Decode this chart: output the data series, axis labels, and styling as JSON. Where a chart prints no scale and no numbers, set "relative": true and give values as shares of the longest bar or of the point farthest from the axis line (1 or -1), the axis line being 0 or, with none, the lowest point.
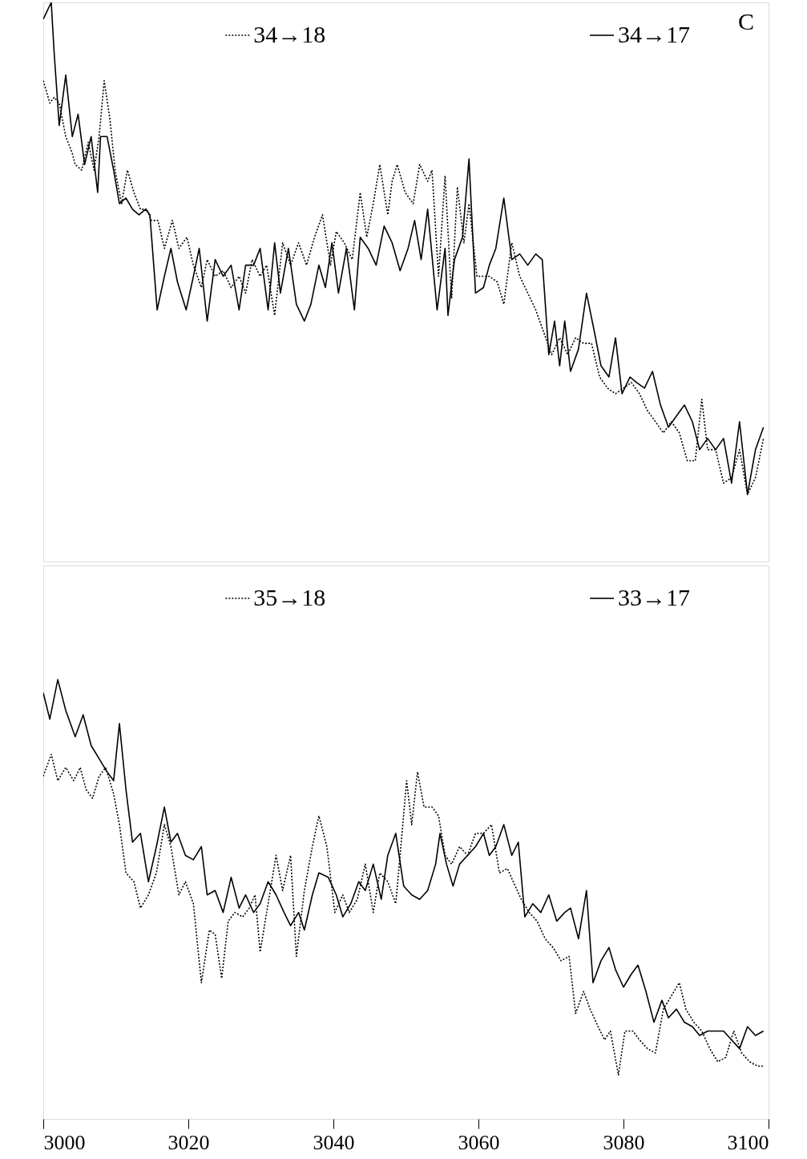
{
  "chart_data": [
    {
      "type": "line",
      "relative": true,
      "xlim": [
        3000,
        3100
      ],
      "xticks": [
        3000,
        3020,
        3040,
        3060,
        3080,
        3100
      ],
      "tick_labels": false,
      "grid": false,
      "legend": "top",
      "annotations": [
        "C"
      ],
      "series": [
        {
          "name": "34→18",
          "color": "#000000",
          "line_style": "dotted",
          "x": [
            3000,
            3000.9,
            3001.5,
            3002.2,
            3003.1,
            3004.0,
            3004.4,
            3005.3,
            3006.2,
            3007.0,
            3007.7,
            3008.4,
            3009.2,
            3009.9,
            3010.8,
            3011.6,
            3012.5,
            3013.4,
            3014.3,
            3014.9,
            3015.8,
            3016.7,
            3017.8,
            3018.7,
            3019.8,
            3020.7,
            3021.8,
            3022.6,
            3023.7,
            3024.8,
            3025.9,
            3027.0,
            3027.9,
            3028.8,
            3029.9,
            3030.8,
            3031.9,
            3033.0,
            3034.1,
            3035.2,
            3036.3,
            3037.4,
            3038.5,
            3039.6,
            3040.4,
            3041.5,
            3042.6,
            3043.7,
            3044.6,
            3045.5,
            3046.4,
            3047.5,
            3048.1,
            3048.8,
            3049.9,
            3051.0,
            3051.9,
            3053.0,
            3053.6,
            3054.5,
            3055.4,
            3056.3,
            3057.1,
            3058.0,
            3058.7,
            3059.8,
            3060.7,
            3061.5,
            3062.6,
            3063.5,
            3064.6,
            3065.7,
            3066.8,
            3067.9,
            3069.0,
            3070.1,
            3071.2,
            3072.3,
            3073.4,
            3074.5,
            3075.6,
            3076.7,
            3077.8,
            3078.9,
            3080.0,
            3081.1,
            3082.2,
            3083.3,
            3084.4,
            3085.5,
            3086.6,
            3087.7,
            3088.8,
            3089.9,
            3090.8,
            3091.6,
            3092.7,
            3093.8,
            3094.9,
            3096.0,
            3097.1,
            3098.2,
            3099.3
          ],
          "values": [
            0.86,
            0.82,
            0.83,
            0.82,
            0.76,
            0.73,
            0.71,
            0.7,
            0.75,
            0.7,
            0.76,
            0.86,
            0.79,
            0.7,
            0.64,
            0.7,
            0.66,
            0.63,
            0.63,
            0.61,
            0.61,
            0.56,
            0.61,
            0.56,
            0.58,
            0.53,
            0.49,
            0.54,
            0.51,
            0.52,
            0.49,
            0.51,
            0.48,
            0.54,
            0.51,
            0.53,
            0.44,
            0.57,
            0.53,
            0.57,
            0.53,
            0.58,
            0.62,
            0.53,
            0.59,
            0.57,
            0.54,
            0.66,
            0.58,
            0.64,
            0.71,
            0.62,
            0.68,
            0.71,
            0.66,
            0.64,
            0.71,
            0.68,
            0.7,
            0.51,
            0.69,
            0.47,
            0.67,
            0.57,
            0.64,
            0.51,
            0.51,
            0.51,
            0.5,
            0.46,
            0.57,
            0.51,
            0.48,
            0.45,
            0.41,
            0.37,
            0.4,
            0.37,
            0.4,
            0.39,
            0.39,
            0.33,
            0.31,
            0.3,
            0.31,
            0.32,
            0.3,
            0.27,
            0.25,
            0.23,
            0.25,
            0.23,
            0.18,
            0.18,
            0.29,
            0.2,
            0.2,
            0.14,
            0.15,
            0.2,
            0.12,
            0.15,
            0.22
          ]
        },
        {
          "name": "34→17",
          "color": "#000000",
          "line_style": "solid",
          "x": [
            3000,
            3001.1,
            3001.5,
            3002.2,
            3003.1,
            3004.0,
            3004.8,
            3005.7,
            3006.6,
            3007.5,
            3007.9,
            3008.8,
            3009.7,
            3010.5,
            3011.4,
            3012.3,
            3013.2,
            3014.1,
            3014.7,
            3015.7,
            3016.7,
            3017.6,
            3018.5,
            3019.7,
            3020.7,
            3021.5,
            3022.6,
            3023.7,
            3024.8,
            3025.9,
            3027.0,
            3027.9,
            3029.0,
            3029.9,
            3031.0,
            3031.9,
            3032.7,
            3033.8,
            3034.9,
            3036.0,
            3036.9,
            3038.0,
            3038.9,
            3039.8,
            3040.7,
            3041.8,
            3042.9,
            3043.7,
            3044.8,
            3045.9,
            3047.0,
            3048.1,
            3049.2,
            3050.3,
            3051.2,
            3052.1,
            3053.0,
            3054.3,
            3055.4,
            3055.8,
            3056.7,
            3057.8,
            3058.7,
            3059.6,
            3060.7,
            3061.5,
            3062.4,
            3063.5,
            3064.6,
            3065.7,
            3066.8,
            3067.9,
            3068.8,
            3069.7,
            3070.5,
            3071.2,
            3071.9,
            3072.7,
            3073.8,
            3074.9,
            3076.0,
            3076.9,
            3078.0,
            3078.9,
            3079.8,
            3080.9,
            3081.8,
            3082.9,
            3084.0,
            3085.1,
            3086.2,
            3087.3,
            3088.4,
            3089.5,
            3090.5,
            3091.6,
            3092.7,
            3093.8,
            3094.9,
            3096.0,
            3097.1,
            3098.2,
            3099.3
          ],
          "values": [
            0.97,
            1.0,
            0.91,
            0.78,
            0.87,
            0.76,
            0.8,
            0.71,
            0.76,
            0.66,
            0.76,
            0.76,
            0.7,
            0.64,
            0.65,
            0.63,
            0.62,
            0.63,
            0.62,
            0.45,
            0.51,
            0.56,
            0.5,
            0.45,
            0.51,
            0.56,
            0.43,
            0.54,
            0.51,
            0.53,
            0.45,
            0.53,
            0.53,
            0.56,
            0.45,
            0.57,
            0.48,
            0.56,
            0.46,
            0.43,
            0.46,
            0.53,
            0.49,
            0.57,
            0.48,
            0.56,
            0.45,
            0.58,
            0.56,
            0.53,
            0.6,
            0.57,
            0.52,
            0.56,
            0.61,
            0.54,
            0.63,
            0.45,
            0.56,
            0.44,
            0.54,
            0.58,
            0.72,
            0.48,
            0.49,
            0.53,
            0.56,
            0.65,
            0.54,
            0.55,
            0.53,
            0.55,
            0.54,
            0.37,
            0.43,
            0.35,
            0.43,
            0.34,
            0.38,
            0.48,
            0.41,
            0.35,
            0.33,
            0.4,
            0.3,
            0.33,
            0.32,
            0.31,
            0.34,
            0.28,
            0.24,
            0.26,
            0.28,
            0.25,
            0.2,
            0.22,
            0.2,
            0.22,
            0.14,
            0.25,
            0.12,
            0.2,
            0.24
          ]
        }
      ]
    },
    {
      "type": "line",
      "relative": true,
      "xlim": [
        3000,
        3100
      ],
      "xticks": [
        3000,
        3020,
        3040,
        3060,
        3080,
        3100
      ],
      "grid": false,
      "legend": "top",
      "series": [
        {
          "name": "35→18",
          "color": "#000000",
          "line_style": "dotted",
          "x": [
            3000,
            3001.1,
            3002.0,
            3003.1,
            3004.2,
            3005.1,
            3005.9,
            3006.8,
            3007.7,
            3008.6,
            3009.7,
            3010.5,
            3011.4,
            3012.5,
            3013.4,
            3014.5,
            3015.6,
            3016.7,
            3017.6,
            3018.7,
            3019.6,
            3020.7,
            3021.8,
            3022.9,
            3023.7,
            3024.6,
            3025.5,
            3026.4,
            3027.5,
            3028.4,
            3029.2,
            3029.9,
            3031.0,
            3032.1,
            3033.0,
            3034.1,
            3034.9,
            3036.0,
            3037.1,
            3038.0,
            3039.1,
            3040.2,
            3041.3,
            3042.2,
            3043.3,
            3044.4,
            3045.5,
            3046.4,
            3047.5,
            3048.6,
            3049.2,
            3050.1,
            3050.8,
            3051.6,
            3052.5,
            3053.6,
            3054.5,
            3055.4,
            3056.3,
            3057.4,
            3058.5,
            3059.6,
            3060.7,
            3061.8,
            3062.9,
            3064.0,
            3064.8,
            3065.9,
            3067.0,
            3068.1,
            3069.2,
            3070.3,
            3071.4,
            3072.5,
            3073.4,
            3074.5,
            3075.4,
            3076.5,
            3077.4,
            3078.2,
            3079.3,
            3080.2,
            3081.3,
            3082.2,
            3083.3,
            3084.4,
            3085.5,
            3086.6,
            3087.7,
            3088.6,
            3089.7,
            3090.8,
            3091.9,
            3093.0,
            3094.1,
            3095.2,
            3096.3,
            3097.4,
            3098.5,
            3099.3
          ],
          "values": [
            0.78,
            0.83,
            0.77,
            0.8,
            0.77,
            0.8,
            0.75,
            0.73,
            0.78,
            0.8,
            0.74,
            0.67,
            0.56,
            0.54,
            0.48,
            0.51,
            0.56,
            0.67,
            0.62,
            0.51,
            0.54,
            0.49,
            0.31,
            0.43,
            0.42,
            0.32,
            0.45,
            0.47,
            0.46,
            0.48,
            0.51,
            0.38,
            0.49,
            0.6,
            0.52,
            0.6,
            0.37,
            0.52,
            0.62,
            0.69,
            0.62,
            0.47,
            0.51,
            0.47,
            0.5,
            0.58,
            0.47,
            0.56,
            0.54,
            0.49,
            0.6,
            0.77,
            0.67,
            0.79,
            0.71,
            0.71,
            0.69,
            0.6,
            0.58,
            0.62,
            0.6,
            0.65,
            0.65,
            0.67,
            0.56,
            0.57,
            0.54,
            0.5,
            0.47,
            0.45,
            0.41,
            0.39,
            0.36,
            0.37,
            0.24,
            0.29,
            0.25,
            0.21,
            0.18,
            0.2,
            0.1,
            0.2,
            0.2,
            0.18,
            0.16,
            0.15,
            0.25,
            0.28,
            0.31,
            0.25,
            0.22,
            0.2,
            0.16,
            0.13,
            0.14,
            0.2,
            0.15,
            0.13,
            0.12,
            0.12
          ]
        },
        {
          "name": "33→17",
          "color": "#000000",
          "line_style": "solid",
          "x": [
            3000,
            3000.9,
            3002.0,
            3003.1,
            3004.4,
            3005.5,
            3006.6,
            3007.7,
            3008.8,
            3009.7,
            3010.5,
            3011.4,
            3012.3,
            3013.4,
            3014.5,
            3015.6,
            3016.7,
            3017.6,
            3018.5,
            3019.6,
            3020.7,
            3021.8,
            3022.6,
            3023.7,
            3024.8,
            3025.9,
            3027.0,
            3027.9,
            3029.0,
            3029.9,
            3031.0,
            3032.1,
            3033.2,
            3034.1,
            3035.2,
            3036.0,
            3037.1,
            3038.0,
            3039.3,
            3040.4,
            3041.3,
            3042.4,
            3043.5,
            3044.4,
            3045.5,
            3046.6,
            3047.5,
            3048.6,
            3049.7,
            3050.8,
            3051.9,
            3053.0,
            3054.1,
            3054.7,
            3055.6,
            3056.5,
            3057.4,
            3058.5,
            3059.6,
            3060.7,
            3061.5,
            3062.4,
            3063.5,
            3064.6,
            3065.5,
            3066.4,
            3067.5,
            3068.6,
            3069.7,
            3070.8,
            3071.9,
            3072.7,
            3073.8,
            3074.9,
            3075.8,
            3076.9,
            3078.0,
            3078.9,
            3080.0,
            3081.1,
            3082.0,
            3083.1,
            3084.2,
            3085.3,
            3086.2,
            3087.3,
            3088.4,
            3089.5,
            3090.5,
            3091.6,
            3092.7,
            3093.8,
            3094.9,
            3096.0,
            3097.1,
            3098.2,
            3099.3
          ],
          "values": [
            0.97,
            0.91,
            1.0,
            0.93,
            0.87,
            0.92,
            0.85,
            0.82,
            0.79,
            0.77,
            0.9,
            0.75,
            0.63,
            0.65,
            0.54,
            0.62,
            0.71,
            0.63,
            0.65,
            0.6,
            0.59,
            0.62,
            0.51,
            0.52,
            0.47,
            0.55,
            0.48,
            0.51,
            0.47,
            0.49,
            0.54,
            0.51,
            0.47,
            0.44,
            0.47,
            0.43,
            0.51,
            0.56,
            0.55,
            0.51,
            0.46,
            0.49,
            0.54,
            0.52,
            0.58,
            0.5,
            0.6,
            0.65,
            0.53,
            0.51,
            0.5,
            0.52,
            0.58,
            0.65,
            0.58,
            0.53,
            0.58,
            0.6,
            0.62,
            0.65,
            0.6,
            0.62,
            0.67,
            0.6,
            0.63,
            0.46,
            0.49,
            0.47,
            0.51,
            0.45,
            0.47,
            0.48,
            0.41,
            0.52,
            0.31,
            0.36,
            0.39,
            0.34,
            0.3,
            0.33,
            0.35,
            0.29,
            0.22,
            0.27,
            0.23,
            0.25,
            0.22,
            0.21,
            0.19,
            0.2,
            0.2,
            0.2,
            0.18,
            0.16,
            0.21,
            0.19,
            0.2
          ]
        }
      ]
    }
  ]
}
